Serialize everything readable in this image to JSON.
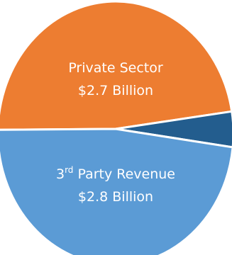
{
  "chart_data": {
    "type": "pie",
    "title": "",
    "slices": [
      {
        "name": "Private Sector",
        "value": 2.7,
        "value_label": "$2.7 Billion",
        "color": "#ED7D31"
      },
      {
        "name": "",
        "value": 0.25,
        "value_label": "",
        "color": "#235D8E"
      },
      {
        "name": "3rd Party Revenue",
        "name_parts": [
          "3",
          "rd",
          " Party Revenue"
        ],
        "value": 2.8,
        "value_label": "$2.8 Billion",
        "color": "#5B9BD5"
      }
    ],
    "legend": "none"
  }
}
